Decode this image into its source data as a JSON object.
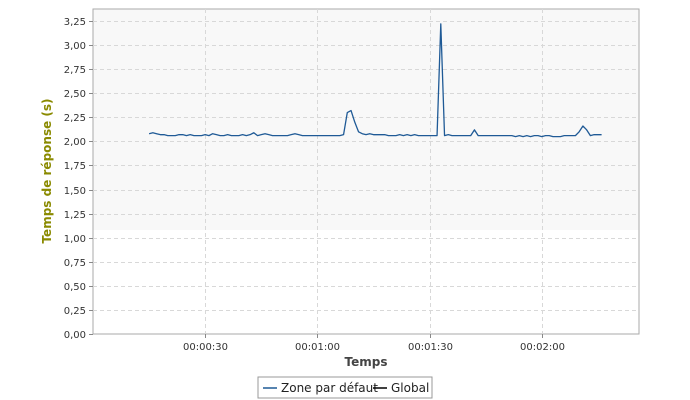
{
  "chart_data": {
    "type": "line",
    "xlabel": "Temps",
    "ylabel": "Temps de réponse (s)",
    "xlim": [
      0,
      146
    ],
    "ylim": [
      0,
      3.375
    ],
    "x_ticks": [
      {
        "value": 30,
        "label": "00:00:30"
      },
      {
        "value": 60,
        "label": "00:01:00"
      },
      {
        "value": 90,
        "label": "00:01:30"
      },
      {
        "value": 120,
        "label": "00:02:00"
      }
    ],
    "y_ticks": [
      {
        "value": 0.0,
        "label": "0,00"
      },
      {
        "value": 0.25,
        "label": "0,25"
      },
      {
        "value": 0.5,
        "label": "0,50"
      },
      {
        "value": 0.75,
        "label": "0,75"
      },
      {
        "value": 1.0,
        "label": "1,00"
      },
      {
        "value": 1.25,
        "label": "1,25"
      },
      {
        "value": 1.5,
        "label": "1,50"
      },
      {
        "value": 1.75,
        "label": "1,75"
      },
      {
        "value": 2.0,
        "label": "2,00"
      },
      {
        "value": 2.25,
        "label": "2,25"
      },
      {
        "value": 2.5,
        "label": "2,50"
      },
      {
        "value": 2.75,
        "label": "2,75"
      },
      {
        "value": 3.0,
        "label": "3,00"
      },
      {
        "value": 3.25,
        "label": "3,25"
      }
    ],
    "grid": true,
    "legend_position": "bottom-center",
    "series": [
      {
        "name": "Zone par défaut",
        "color": "#1f5a96",
        "x": [
          15,
          16,
          17,
          18,
          19,
          20,
          21,
          22,
          23,
          24,
          25,
          26,
          27,
          28,
          29,
          30,
          31,
          32,
          33,
          34,
          35,
          36,
          37,
          38,
          39,
          40,
          41,
          42,
          43,
          44,
          45,
          46,
          47,
          48,
          49,
          50,
          51,
          52,
          53,
          54,
          55,
          56,
          57,
          58,
          59,
          60,
          61,
          62,
          63,
          64,
          65,
          66,
          67,
          68,
          69,
          70,
          71,
          72,
          73,
          74,
          75,
          76,
          77,
          78,
          79,
          80,
          81,
          82,
          83,
          84,
          85,
          86,
          87,
          88,
          89,
          90,
          91,
          92,
          93,
          94,
          95,
          96,
          97,
          98,
          99,
          100,
          101,
          102,
          103,
          104,
          105,
          106,
          107,
          108,
          109,
          110,
          111,
          112,
          113,
          114,
          115,
          116,
          117,
          118,
          119,
          120,
          121,
          122,
          123,
          124,
          125,
          126,
          127,
          128,
          129,
          130,
          131,
          132,
          133,
          134,
          135,
          136
        ],
        "values": [
          2.08,
          2.09,
          2.08,
          2.07,
          2.07,
          2.06,
          2.06,
          2.06,
          2.07,
          2.07,
          2.06,
          2.07,
          2.06,
          2.06,
          2.06,
          2.07,
          2.06,
          2.08,
          2.07,
          2.06,
          2.06,
          2.07,
          2.06,
          2.06,
          2.06,
          2.07,
          2.06,
          2.07,
          2.09,
          2.06,
          2.07,
          2.08,
          2.07,
          2.06,
          2.06,
          2.06,
          2.06,
          2.06,
          2.07,
          2.08,
          2.07,
          2.06,
          2.06,
          2.06,
          2.06,
          2.06,
          2.06,
          2.06,
          2.06,
          2.06,
          2.06,
          2.06,
          2.07,
          2.3,
          2.32,
          2.2,
          2.1,
          2.08,
          2.07,
          2.08,
          2.07,
          2.07,
          2.07,
          2.07,
          2.06,
          2.06,
          2.06,
          2.07,
          2.06,
          2.07,
          2.06,
          2.07,
          2.06,
          2.06,
          2.06,
          2.06,
          2.06,
          2.06,
          3.22,
          2.06,
          2.07,
          2.06,
          2.06,
          2.06,
          2.06,
          2.06,
          2.06,
          2.12,
          2.06,
          2.06,
          2.06,
          2.06,
          2.06,
          2.06,
          2.06,
          2.06,
          2.06,
          2.06,
          2.05,
          2.06,
          2.05,
          2.06,
          2.05,
          2.06,
          2.06,
          2.05,
          2.06,
          2.06,
          2.05,
          2.05,
          2.05,
          2.06,
          2.06,
          2.06,
          2.06,
          2.1,
          2.16,
          2.12,
          2.06,
          2.07,
          2.07,
          2.07
        ]
      },
      {
        "name": "Global",
        "color": "#000000",
        "x": [],
        "values": []
      }
    ]
  }
}
